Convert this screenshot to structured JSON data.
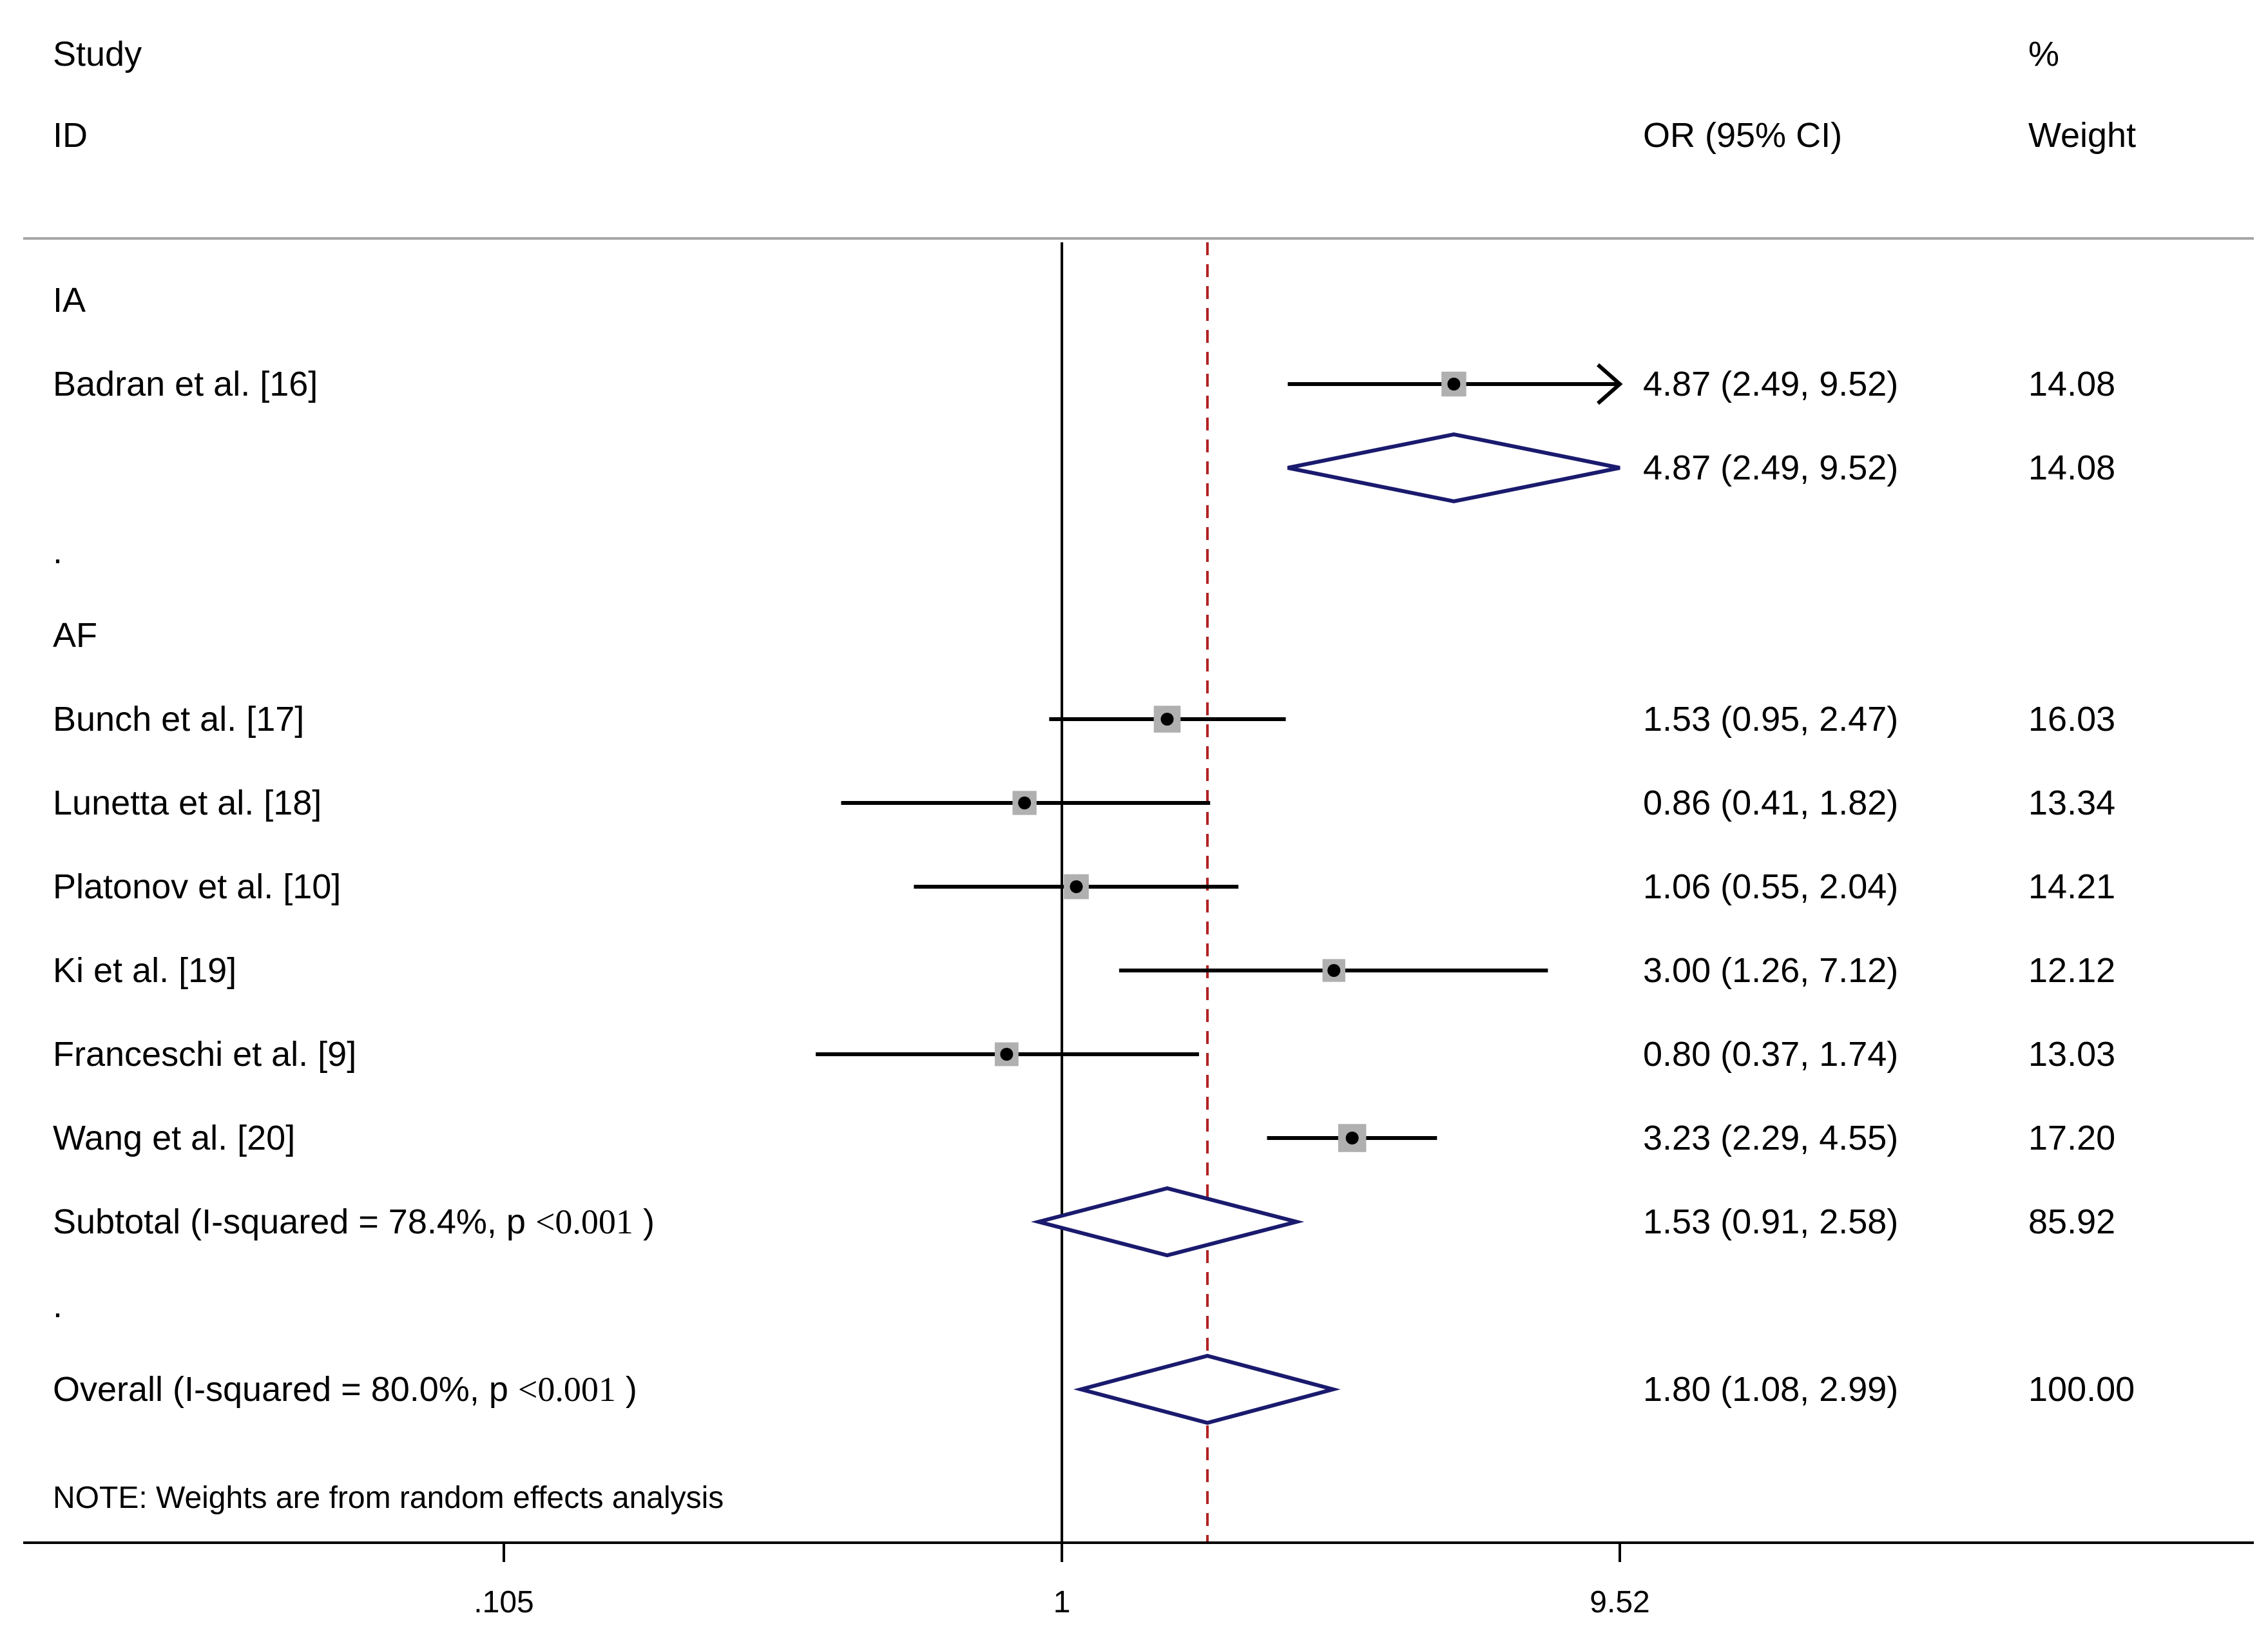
{
  "header": {
    "study_line1": "Study",
    "study_line2": "ID",
    "or_label": "OR (95% CI)",
    "weight_line1": "%",
    "weight_line2": "Weight"
  },
  "note": "NOTE: Weights are from random effects analysis",
  "chart_data": {
    "type": "forest",
    "x_scale": "log",
    "xlim": [
      0.105,
      9.52
    ],
    "x_ticks": [
      ".105",
      "1",
      "9.52"
    ],
    "null_value": 1,
    "overall_estimate": 1.8,
    "colors": {
      "line": "#000000",
      "diamond": "#1a1a6e",
      "ref_line": "#b22222",
      "box": "#b0b0b0"
    },
    "groups": [
      {
        "name": "IA",
        "studies": [
          {
            "label": "Badran et al. [16]",
            "or": 4.87,
            "lo": 2.49,
            "hi": 9.52,
            "ci_text": "4.87 (2.49, 9.52)",
            "weight": "14.08",
            "arrow_right": true
          }
        ],
        "subtotal": {
          "label_a": "",
          "label_p": "",
          "label_c": "",
          "or": 4.87,
          "lo": 2.49,
          "hi": 9.52,
          "ci_text": "4.87 (2.49, 9.52)",
          "weight": "14.08"
        },
        "separator": "."
      },
      {
        "name": "AF",
        "studies": [
          {
            "label": "Bunch et al. [17]",
            "or": 1.53,
            "lo": 0.95,
            "hi": 2.47,
            "ci_text": "1.53 (0.95, 2.47)",
            "weight": "16.03"
          },
          {
            "label": "Lunetta et al. [18]",
            "or": 0.86,
            "lo": 0.41,
            "hi": 1.82,
            "ci_text": "0.86 (0.41, 1.82)",
            "weight": "13.34"
          },
          {
            "label": "Platonov et al. [10]",
            "or": 1.06,
            "lo": 0.55,
            "hi": 2.04,
            "ci_text": "1.06 (0.55, 2.04)",
            "weight": "14.21"
          },
          {
            "label": "Ki et al. [19]",
            "or": 3.0,
            "lo": 1.26,
            "hi": 7.12,
            "ci_text": "3.00 (1.26, 7.12)",
            "weight": "12.12"
          },
          {
            "label": "Franceschi et al. [9]",
            "or": 0.8,
            "lo": 0.37,
            "hi": 1.74,
            "ci_text": "0.80 (0.37, 1.74)",
            "weight": "13.03"
          },
          {
            "label": "Wang et al. [20]",
            "or": 3.23,
            "lo": 2.29,
            "hi": 4.55,
            "ci_text": "3.23 (2.29, 4.55)",
            "weight": "17.20"
          }
        ],
        "subtotal": {
          "label_a": "Subtotal  (I-squared = 78.4%, p ",
          "label_p": "<0.001",
          "label_c": " )",
          "or": 1.53,
          "lo": 0.91,
          "hi": 2.58,
          "ci_text": "1.53 (0.91, 2.58)",
          "weight": "85.92"
        },
        "separator": "."
      }
    ],
    "overall": {
      "label_a": "Overall  (I-squared = 80.0%, p ",
      "label_p": "<0.001",
      "label_c": " )",
      "or": 1.8,
      "lo": 1.08,
      "hi": 2.99,
      "ci_text": "1.80 (1.08, 2.99)",
      "weight": "100.00"
    }
  }
}
